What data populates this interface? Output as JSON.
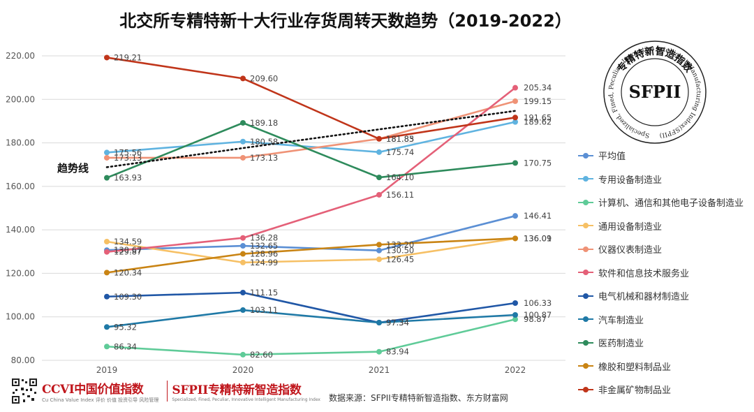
{
  "chart_data": {
    "type": "line",
    "title": "北交所专精特新十大行业存货周转天数趋势（2019-2022）",
    "xlabel": "",
    "ylabel": "",
    "x": [
      "2019",
      "2020",
      "2021",
      "2022"
    ],
    "ylim": [
      80,
      220
    ],
    "yticks": [
      "80.00",
      "100.00",
      "120.00",
      "140.00",
      "160.00",
      "180.00",
      "200.00",
      "220.00"
    ],
    "grid": true,
    "legend_position": "right",
    "series": [
      {
        "name": "平均值",
        "color": "#5b8fd4",
        "values": [
          130.67,
          132.65,
          130.5,
          146.41
        ]
      },
      {
        "name": "专用设备制造业",
        "color": "#5fb3e0",
        "values": [
          175.56,
          180.58,
          175.74,
          189.62
        ]
      },
      {
        "name": "计算机、通信和其他电子设备制造业",
        "color": "#5fcb98",
        "values": [
          86.34,
          82.6,
          83.94,
          98.87
        ]
      },
      {
        "name": "通用设备制造业",
        "color": "#f6c065",
        "values": [
          134.59,
          124.99,
          126.45,
          136.01
        ]
      },
      {
        "name": "仪器仪表制造业",
        "color": "#ef9276",
        "values": [
          173.13,
          173.13,
          181.83,
          199.15
        ]
      },
      {
        "name": "软件和信息技术服务业",
        "color": "#e46078",
        "values": [
          129.87,
          136.28,
          156.11,
          205.34
        ]
      },
      {
        "name": "电气机械和器材制造业",
        "color": "#2057a6",
        "values": [
          109.3,
          111.15,
          97.34,
          106.33
        ]
      },
      {
        "name": "汽车制造业",
        "color": "#1f79a6",
        "values": [
          95.32,
          103.11,
          97.34,
          100.87
        ]
      },
      {
        "name": "医药制造业",
        "color": "#2e8b5c",
        "values": [
          163.93,
          189.18,
          164.1,
          170.75
        ]
      },
      {
        "name": "橡胶和塑料制品业",
        "color": "#c98414",
        "values": [
          120.34,
          128.96,
          133.2,
          136.09
        ]
      },
      {
        "name": "非金属矿物制品业",
        "color": "#c0351a",
        "values": [
          219.21,
          209.6,
          181.85,
          191.65
        ]
      }
    ],
    "trendline": {
      "label": "趋势线",
      "color": "#111111",
      "values": [
        168.8,
        177.6,
        186.2,
        194.7
      ]
    }
  },
  "seal": {
    "center_text": "SFPII",
    "ring_cn": "专精特新智造指数",
    "ring_en": "Specialized, Fined, Peculiar, Innovative Intelligent Manufacturing Index(SFPII)"
  },
  "footer": {
    "ccvi_logo": "CCVI中国价值指数",
    "ccvi_sub_en": "Cu China Value Index",
    "ccvi_sub_cn": "评价 价值 投资引导 风险管理",
    "sfpii_logo": "SFPII专精特新智造指数",
    "sfpii_sub": "Specialized, Fined, Peculiar, Innovative Intelligent Manufacturing Index",
    "source": "数据来源：SFPII专精特新智造指数、东方财富网"
  }
}
